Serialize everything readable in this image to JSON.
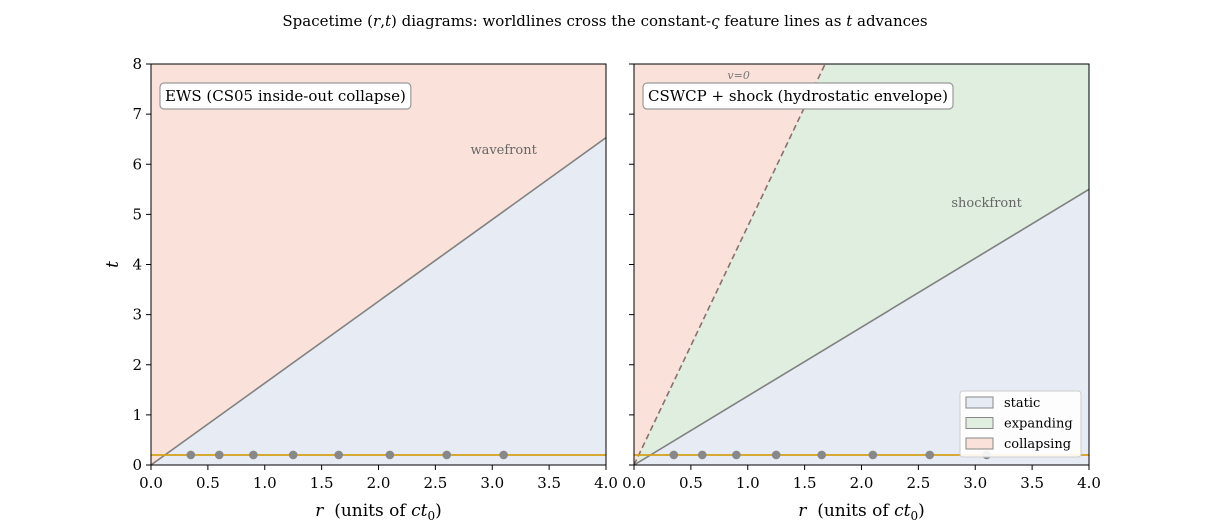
{
  "figure": {
    "suptitle": "Spacetime (r,t) diagrams: worldlines cross the constant-ς feature lines as t advances"
  },
  "colors": {
    "static": "#e6ebf4",
    "expanding": "#dfeedf",
    "collapsing": "#fae2da",
    "feature_line": "#808080",
    "time_line": "#d4a017",
    "worldline_dot": "#888888"
  },
  "legend": {
    "entries": [
      "static",
      "expanding",
      "collapsing"
    ],
    "placement": "lower-right"
  },
  "chart_data": [
    {
      "type": "area",
      "panel_label": "EWS (CS05 inside-out collapse)",
      "xlabel": "r  (units of ct₀)",
      "ylabel": "t",
      "xlim": [
        0,
        4
      ],
      "ylim": [
        0,
        8
      ],
      "xticks": [
        "0.0",
        "0.5",
        "1.0",
        "1.5",
        "2.0",
        "2.5",
        "3.0",
        "3.5",
        "4.0"
      ],
      "yticks": [
        "0",
        "1",
        "2",
        "3",
        "4",
        "5",
        "6",
        "7",
        "8"
      ],
      "feature_lines": [
        {
          "label": "wavefront",
          "style": "solid",
          "x": [
            0,
            4
          ],
          "y": [
            0,
            6.53
          ]
        }
      ],
      "regions": [
        {
          "name": "collapsing",
          "position": "above wavefront"
        },
        {
          "name": "static",
          "position": "below wavefront"
        }
      ],
      "current_time": 0.2,
      "worldline_r": [
        0.35,
        0.6,
        0.9,
        1.25,
        1.65,
        2.1,
        2.6,
        3.1
      ]
    },
    {
      "type": "area",
      "panel_label": "CSWCP + shock (hydrostatic envelope)",
      "xlabel": "r  (units of ct₀)",
      "ylabel": "",
      "xlim": [
        0,
        4
      ],
      "ylim": [
        0,
        8
      ],
      "xticks": [
        "0.0",
        "0.5",
        "1.0",
        "1.5",
        "2.0",
        "2.5",
        "3.0",
        "3.5",
        "4.0"
      ],
      "yticks": [
        "0",
        "1",
        "2",
        "3",
        "4",
        "5",
        "6",
        "7",
        "8"
      ],
      "feature_lines": [
        {
          "label": "shockfront",
          "style": "solid",
          "x": [
            0,
            4
          ],
          "y": [
            0,
            5.5
          ]
        },
        {
          "label": "v=0",
          "style": "dashed",
          "x": [
            0,
            1.68
          ],
          "y": [
            0,
            8
          ]
        }
      ],
      "regions": [
        {
          "name": "collapsing",
          "position": "left of v=0 line"
        },
        {
          "name": "expanding",
          "position": "between v=0 and shockfront"
        },
        {
          "name": "static",
          "position": "below shockfront"
        }
      ],
      "current_time": 0.2,
      "worldline_r": [
        0.35,
        0.6,
        0.9,
        1.25,
        1.65,
        2.1,
        2.6,
        3.1
      ]
    }
  ]
}
